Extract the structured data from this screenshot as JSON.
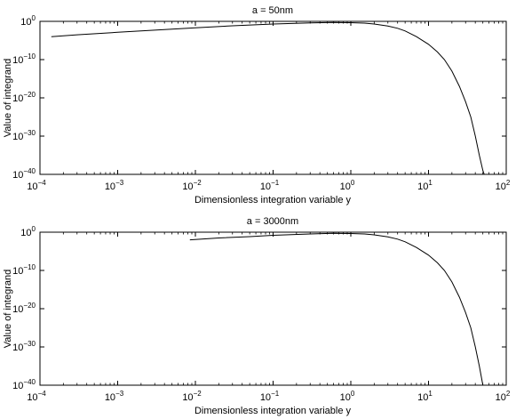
{
  "chart_data": [
    {
      "type": "line",
      "title": "a = 50nm",
      "xlabel": "Dimensionless integration variable y",
      "ylabel": "Value of integrand",
      "xscale": "log",
      "yscale": "log",
      "xlim": [
        0.0001,
        100
      ],
      "ylim": [
        1e-40,
        1
      ],
      "x_ticks": [
        {
          "base": "10",
          "exp": "−4"
        },
        {
          "base": "10",
          "exp": "−3"
        },
        {
          "base": "10",
          "exp": "−2"
        },
        {
          "base": "10",
          "exp": "−1"
        },
        {
          "base": "10",
          "exp": "0"
        },
        {
          "base": "10",
          "exp": "1"
        },
        {
          "base": "10",
          "exp": "2"
        }
      ],
      "y_ticks": [
        {
          "base": "10",
          "exp": "0"
        },
        {
          "base": "10",
          "exp": "−10"
        },
        {
          "base": "10",
          "exp": "−20"
        },
        {
          "base": "10",
          "exp": "−30"
        },
        {
          "base": "10",
          "exp": "−40"
        }
      ],
      "grid": false,
      "series": [
        {
          "color": "#000000",
          "x": [
            0.00014,
            0.0003,
            0.001,
            0.003,
            0.01,
            0.03,
            0.1,
            0.3,
            0.6,
            1.0,
            1.5,
            2.0,
            3.0,
            4.0,
            5.0,
            7.0,
            10.0,
            13.0,
            16.0,
            20.0,
            25.0,
            30.0,
            35.0,
            40.0,
            45.0,
            50.0,
            52.0
          ],
          "y": [
            0.0001,
            0.0003,
            0.0014,
            0.005,
            0.02,
            0.07,
            0.2,
            0.4,
            0.5,
            0.45,
            0.35,
            0.2,
            0.06,
            0.015,
            0.003,
            0.0001,
            1e-06,
            1e-08,
            1e-10,
            1e-13,
            1e-17,
            1e-21,
            1e-25,
            1e-30,
            1e-35,
            1e-39,
            1e-40
          ]
        }
      ]
    },
    {
      "type": "line",
      "title": "a = 3000nm",
      "xlabel": "Dimensionless integration variable y",
      "ylabel": "Value of integrand",
      "xscale": "log",
      "yscale": "log",
      "xlim": [
        0.0001,
        100
      ],
      "ylim": [
        1e-40,
        1
      ],
      "x_ticks": [
        {
          "base": "10",
          "exp": "−4"
        },
        {
          "base": "10",
          "exp": "−3"
        },
        {
          "base": "10",
          "exp": "−2"
        },
        {
          "base": "10",
          "exp": "−1"
        },
        {
          "base": "10",
          "exp": "0"
        },
        {
          "base": "10",
          "exp": "1"
        },
        {
          "base": "10",
          "exp": "2"
        }
      ],
      "y_ticks": [
        {
          "base": "10",
          "exp": "0"
        },
        {
          "base": "10",
          "exp": "−10"
        },
        {
          "base": "10",
          "exp": "−20"
        },
        {
          "base": "10",
          "exp": "−30"
        },
        {
          "base": "10",
          "exp": "−40"
        }
      ],
      "grid": false,
      "series": [
        {
          "color": "#000000",
          "x": [
            0.0085,
            0.02,
            0.05,
            0.1,
            0.3,
            0.6,
            1.0,
            1.5,
            2.0,
            3.0,
            4.0,
            5.0,
            7.0,
            10.0,
            13.0,
            16.0,
            20.0,
            25.0,
            30.0,
            35.0,
            40.0,
            45.0,
            48.0,
            50.0
          ],
          "y": [
            0.01,
            0.03,
            0.07,
            0.15,
            0.35,
            0.5,
            0.45,
            0.35,
            0.2,
            0.06,
            0.015,
            0.003,
            0.0001,
            1e-06,
            1e-08,
            1e-10,
            1e-13,
            1e-17,
            1e-21,
            1e-25,
            1e-30,
            1e-35,
            1e-38,
            1e-40
          ]
        }
      ]
    }
  ]
}
